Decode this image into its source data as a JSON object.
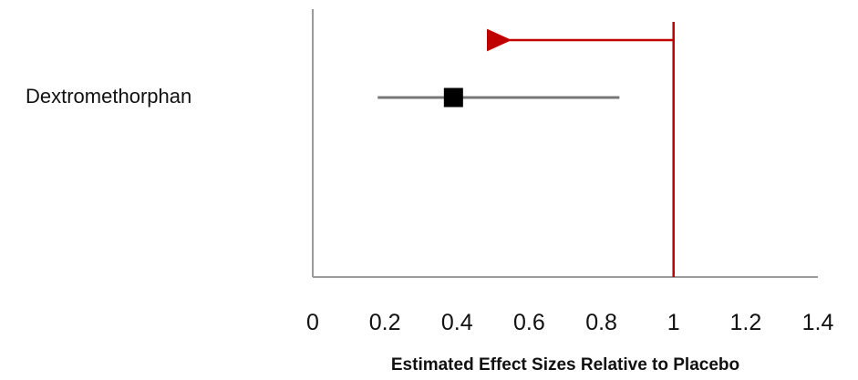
{
  "chart_data": {
    "type": "forest",
    "title": "",
    "xlabel": "Estimated Effect Sizes Relative to Placebo",
    "ylabel": "",
    "xlim": [
      0,
      1.4
    ],
    "x_ticks": [
      "0",
      "0.2",
      "0.4",
      "0.6",
      "0.8",
      "1",
      "1.2",
      "1.4"
    ],
    "reference_value": 1,
    "grid": false,
    "categories": [
      "Dextromethorphan"
    ],
    "series": [
      {
        "values": [
          {
            "label": "Dextromethorphan",
            "estimate": 0.39,
            "lower": 0.18,
            "upper": 0.85
          }
        ]
      }
    ],
    "annotation": {
      "type": "arrow",
      "from_x": 1,
      "to_x": 0.52,
      "direction": "left"
    },
    "colors": {
      "reference_line": "#c00000",
      "arrow": "#c00000",
      "axis": "#9a9a9a",
      "ci_line": "#777777",
      "marker": "#000000"
    }
  }
}
